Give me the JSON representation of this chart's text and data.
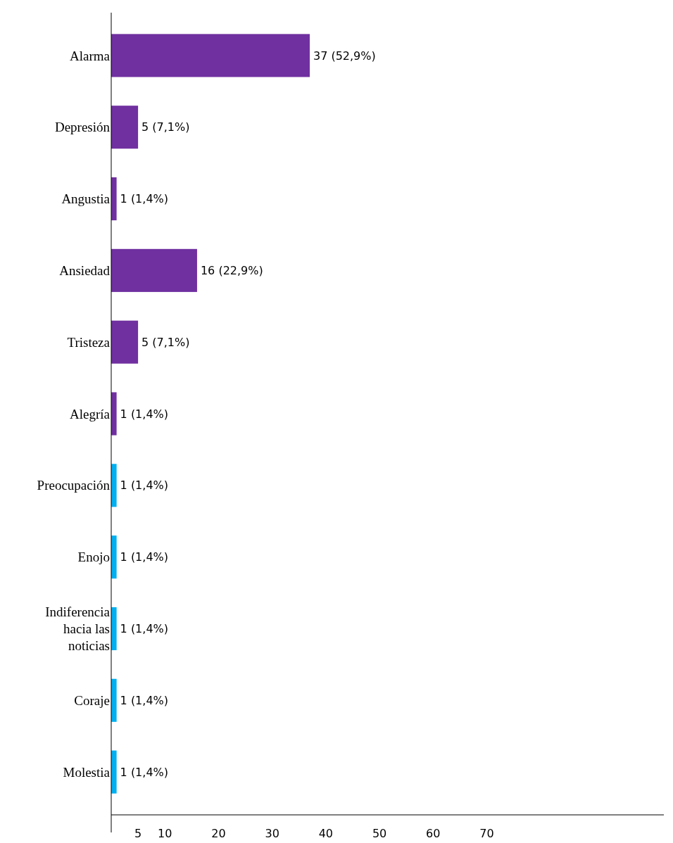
{
  "chart_data": {
    "type": "bar",
    "orientation": "horizontal",
    "categories": [
      "Alarma",
      "Depresión",
      "Angustia",
      "Ansiedad",
      "Tristeza",
      "Alegría",
      "Preocupación",
      "Enojo",
      "Indiferencia hacia las noticias",
      "Coraje",
      "Molestia"
    ],
    "values": [
      37,
      5,
      1,
      16,
      5,
      1,
      1,
      1,
      1,
      1,
      1
    ],
    "colors": [
      "#7030a0",
      "#7030a0",
      "#7030a0",
      "#7030a0",
      "#7030a0",
      "#7030a0",
      "#00b0f0",
      "#00b0f0",
      "#00b0f0",
      "#00b0f0",
      "#00b0f0"
    ],
    "value_labels": [
      "37 (52,9%)",
      "5 (7,1%)",
      "1 (1,4%)",
      "16 (22,9%)",
      "5 (7,1%)",
      "1 (1,4%)",
      "1 (1,4%)",
      "1 (1,4%)",
      "1 (1,4%)",
      "1 (1,4%)",
      "1 (1,4%)"
    ],
    "xlim": [
      0,
      103
    ],
    "xticks": [
      5,
      10,
      20,
      30,
      40,
      50,
      60,
      70
    ]
  }
}
